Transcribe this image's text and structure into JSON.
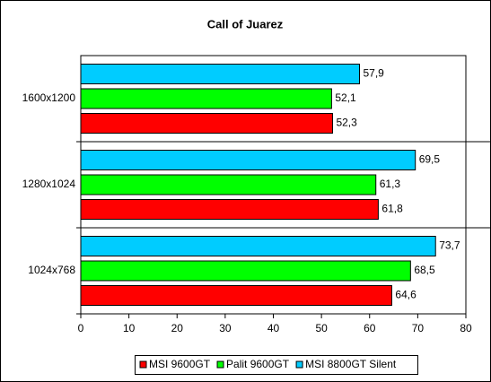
{
  "chart_data": {
    "type": "bar",
    "orientation": "horizontal",
    "title": "Call of Juarez",
    "categories": [
      "1600x1200",
      "1280x1024",
      "1024x768"
    ],
    "series": [
      {
        "name": "MSI 9600GT",
        "color": "#ff0000",
        "values": [
          52.3,
          61.8,
          64.6
        ],
        "value_labels": [
          "52,3",
          "61,8",
          "64,6"
        ]
      },
      {
        "name": "Palit 9600GT",
        "color": "#00ff00",
        "values": [
          52.1,
          61.3,
          68.5
        ],
        "value_labels": [
          "52,1",
          "61,3",
          "68,5"
        ]
      },
      {
        "name": "MSI 8800GT Silent",
        "color": "#00ccff",
        "values": [
          57.9,
          69.5,
          73.7
        ],
        "value_labels": [
          "57,9",
          "69,5",
          "73,7"
        ]
      }
    ],
    "xlim": [
      0,
      80
    ],
    "xticks": [
      0,
      10,
      20,
      30,
      40,
      50,
      60,
      70,
      80
    ],
    "legend": "bottom"
  }
}
